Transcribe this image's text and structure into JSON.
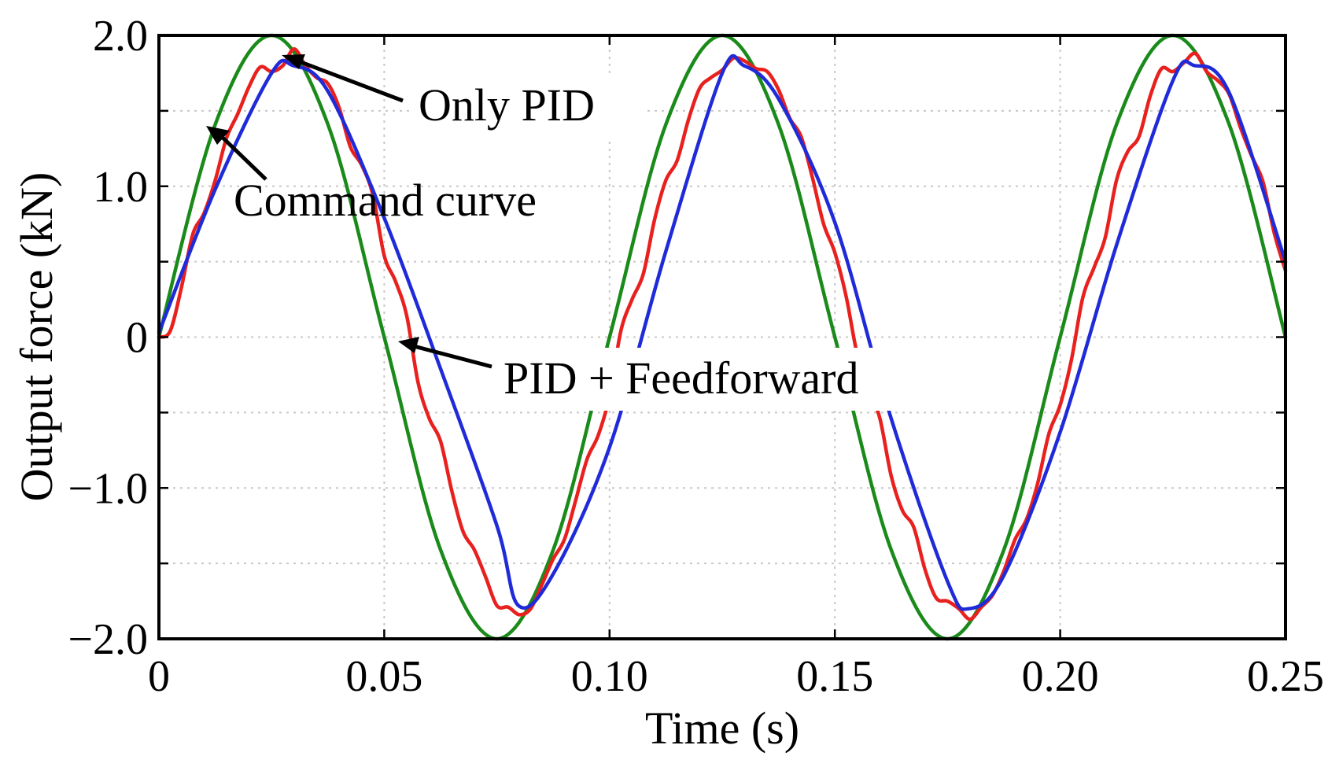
{
  "chart_data": {
    "type": "line",
    "title": "",
    "xlabel": "Time (s)",
    "ylabel": "Output force (kN)",
    "xlim": [
      0,
      0.25
    ],
    "ylim": [
      -2.0,
      2.0
    ],
    "grid": true,
    "x_ticks": [
      0,
      0.05,
      0.1,
      0.15,
      0.2,
      0.25
    ],
    "x_tick_labels": [
      "0",
      "0.05",
      "0.10",
      "0.15",
      "0.20",
      "0.25"
    ],
    "y_ticks": [
      -2.0,
      -1.0,
      0,
      1.0,
      2.0
    ],
    "y_tick_labels": [
      "−2.0",
      "−1.0",
      "0",
      "1.0",
      "2.0"
    ],
    "series": [
      {
        "name": "Command curve",
        "color": "#1a8a1a",
        "x": [
          0,
          0.0125,
          0.025,
          0.0375,
          0.05,
          0.0625,
          0.075,
          0.0875,
          0.1,
          0.1125,
          0.125,
          0.1375,
          0.15,
          0.1625,
          0.175,
          0.1875,
          0.2,
          0.2125,
          0.225,
          0.2375,
          0.25
        ],
        "values": [
          0,
          1.41,
          2.0,
          1.41,
          0,
          -1.41,
          -2.0,
          -1.41,
          0,
          1.41,
          2.0,
          1.41,
          0,
          -1.41,
          -2.0,
          -1.41,
          0,
          1.41,
          2.0,
          1.41,
          0
        ]
      },
      {
        "name": "Only PID",
        "color": "#e8201e",
        "x": [
          0,
          0.0025,
          0.005,
          0.0075,
          0.01,
          0.0125,
          0.015,
          0.0175,
          0.02,
          0.0225,
          0.025,
          0.0275,
          0.03,
          0.0325,
          0.035,
          0.0375,
          0.04,
          0.0425,
          0.045,
          0.0475,
          0.05,
          0.0525,
          0.055,
          0.0575,
          0.06,
          0.0625,
          0.065,
          0.0675,
          0.07,
          0.0725,
          0.075,
          0.0775,
          0.08,
          0.0825,
          0.085,
          0.0875,
          0.09,
          0.0925,
          0.095,
          0.0975,
          0.1,
          0.1025,
          0.105,
          0.1075,
          0.11,
          0.1125,
          0.115,
          0.1175,
          0.12,
          0.1225,
          0.125,
          0.1275,
          0.13,
          0.1325,
          0.135,
          0.1375,
          0.14,
          0.1425,
          0.145,
          0.1475,
          0.15,
          0.1525,
          0.155,
          0.1575,
          0.16,
          0.1625,
          0.165,
          0.1675,
          0.17,
          0.1725,
          0.175,
          0.1775,
          0.18,
          0.1825,
          0.185,
          0.1875,
          0.19,
          0.1925,
          0.195,
          0.1975,
          0.2,
          0.2025,
          0.205,
          0.2075,
          0.21,
          0.2125,
          0.215,
          0.2175,
          0.22,
          0.2225,
          0.225,
          0.2275,
          0.23,
          0.2325,
          0.235,
          0.2375,
          0.24,
          0.2425,
          0.245,
          0.2475,
          0.25
        ],
        "values": [
          0.0,
          0.04,
          0.33,
          0.68,
          0.82,
          1.04,
          1.32,
          1.48,
          1.66,
          1.79,
          1.76,
          1.8,
          1.91,
          1.8,
          1.72,
          1.68,
          1.52,
          1.26,
          1.14,
          0.94,
          0.54,
          0.37,
          0.14,
          -0.3,
          -0.54,
          -0.69,
          -1.02,
          -1.29,
          -1.41,
          -1.59,
          -1.78,
          -1.79,
          -1.84,
          -1.8,
          -1.64,
          -1.47,
          -1.34,
          -1.08,
          -0.81,
          -0.65,
          -0.39,
          0.04,
          0.25,
          0.42,
          0.78,
          1.04,
          1.17,
          1.44,
          1.65,
          1.72,
          1.77,
          1.85,
          1.83,
          1.78,
          1.76,
          1.64,
          1.45,
          1.33,
          1.06,
          0.75,
          0.56,
          0.27,
          -0.12,
          -0.34,
          -0.54,
          -0.92,
          -1.15,
          -1.26,
          -1.54,
          -1.73,
          -1.75,
          -1.8,
          -1.87,
          -1.79,
          -1.71,
          -1.55,
          -1.34,
          -1.21,
          -0.97,
          -0.64,
          -0.45,
          -0.15,
          0.26,
          0.46,
          0.66,
          1.04,
          1.23,
          1.33,
          1.6,
          1.78,
          1.76,
          1.82,
          1.88,
          1.76,
          1.7,
          1.61,
          1.39,
          1.2,
          1.03,
          0.69,
          0.44
        ]
      },
      {
        "name": "PID + Feedforward",
        "color": "#1f2bd8",
        "x": [
          0,
          0.0125,
          0.025,
          0.0298,
          0.0375,
          0.05,
          0.0625,
          0.075,
          0.0798,
          0.0875,
          0.1,
          0.1125,
          0.125,
          0.1298,
          0.1375,
          0.15,
          0.1625,
          0.175,
          0.1798,
          0.1875,
          0.2,
          0.2125,
          0.225,
          0.2298,
          0.2375,
          0.25
        ],
        "values": [
          0.03,
          0.98,
          1.75,
          1.8,
          1.63,
          0.79,
          -0.21,
          -1.25,
          -1.78,
          -1.57,
          -0.73,
          0.57,
          1.75,
          1.8,
          1.58,
          0.76,
          -0.54,
          -1.62,
          -1.8,
          -1.58,
          -0.63,
          0.61,
          1.7,
          1.8,
          1.62,
          0.5
        ]
      }
    ],
    "annotations": [
      {
        "text": "Only PID",
        "points_to": [
          0.028,
          1.9
        ]
      },
      {
        "text": "Command curve",
        "points_to": [
          0.0115,
          1.4
        ]
      },
      {
        "text": "PID + Feedforward",
        "points_to": [
          0.0535,
          0.0
        ]
      }
    ]
  }
}
